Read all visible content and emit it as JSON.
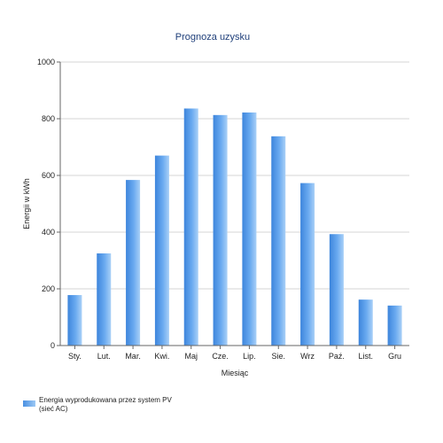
{
  "chart_data": {
    "type": "bar",
    "title": "Prognoza uzysku",
    "xlabel": "Miesiąc",
    "ylabel": "Energii w kWh",
    "ylim": [
      0,
      1000
    ],
    "yticks": [
      0,
      200,
      400,
      600,
      800,
      1000
    ],
    "grid": true,
    "legend_position": "bottom-left",
    "categories": [
      "Sty.",
      "Lut.",
      "Mar.",
      "Kwi.",
      "Maj",
      "Cze.",
      "Lip.",
      "Sie.",
      "Wrz",
      "Paź.",
      "List.",
      "Gru"
    ],
    "series": [
      {
        "name": "Energia wyprodukowana przez system PV (sieć AC)",
        "color": "#5a9ee8",
        "values": [
          178,
          325,
          584,
          670,
          836,
          813,
          822,
          738,
          573,
          393,
          162,
          141
        ]
      }
    ]
  }
}
